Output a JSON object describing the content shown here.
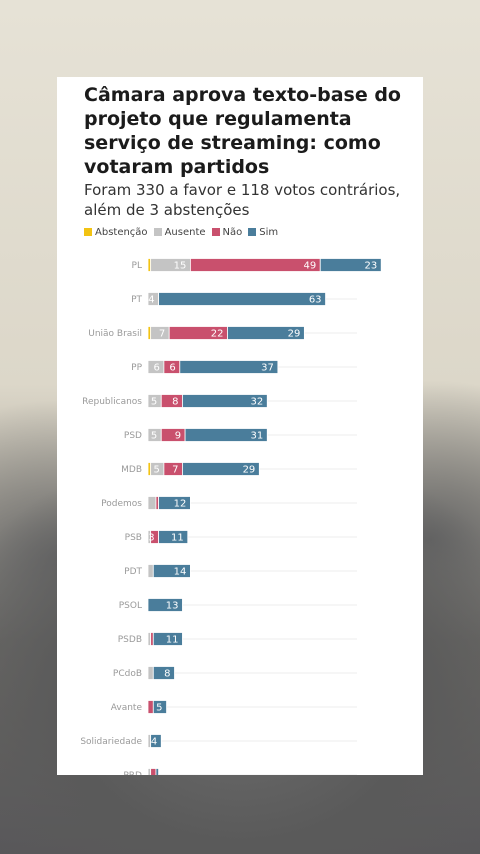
{
  "colors": {
    "abstencao": "#f2c313",
    "ausente": "#c4c4c4",
    "nao": "#c9506d",
    "sim": "#4a7d9b"
  },
  "header": {
    "title": "Câmara aprova texto-base do projeto que regulamenta serviço de streaming: como votaram partidos",
    "subtitle": "Foram 330 a favor e 118 votos contrários, além de 3 abstenções"
  },
  "legend": [
    {
      "label": "Abstenção",
      "color": "#f2c313"
    },
    {
      "label": "Ausente",
      "color": "#c4c4c4"
    },
    {
      "label": "Não",
      "color": "#c9506d"
    },
    {
      "label": "Sim",
      "color": "#4a7d9b"
    }
  ],
  "chart_data": {
    "type": "bar",
    "orientation": "horizontal",
    "stacked": true,
    "title": "Câmara aprova texto-base do projeto que regulamenta serviço de streaming: como votaram partidos",
    "subtitle": "Foram 330 a favor e 118 votos contrários, além de 3 abstenções",
    "categories": [
      "PL",
      "PT",
      "União Brasil",
      "PP",
      "Republicanos",
      "PSD",
      "MDB",
      "Podemos",
      "PSB",
      "PDT",
      "PSOL",
      "PSDB",
      "PCdoB",
      "Avante",
      "Solidariedade",
      "PRD"
    ],
    "series": [
      {
        "name": "Abstenção",
        "color": "#f2c313",
        "values": [
          1,
          0,
          1,
          0,
          0,
          0,
          1,
          0,
          0,
          0,
          0,
          0,
          0,
          0,
          0,
          0
        ]
      },
      {
        "name": "Ausente",
        "color": "#c4c4c4",
        "values": [
          15,
          4,
          7,
          6,
          5,
          5,
          5,
          3,
          1,
          2,
          0,
          1,
          2,
          0,
          1,
          1
        ]
      },
      {
        "name": "Não",
        "color": "#c9506d",
        "values": [
          49,
          0,
          22,
          6,
          8,
          9,
          7,
          1,
          3,
          0,
          0,
          1,
          0,
          2,
          0,
          2
        ]
      },
      {
        "name": "Sim",
        "color": "#4a7d9b",
        "values": [
          23,
          63,
          29,
          37,
          32,
          31,
          29,
          12,
          11,
          14,
          13,
          11,
          8,
          5,
          4,
          1
        ]
      }
    ],
    "labels": {
      "Ausente": [
        "15",
        "4",
        "7",
        "6",
        "5",
        "5",
        "5",
        "",
        "",
        "",
        "",
        "",
        "",
        "",
        "",
        ""
      ],
      "Não": [
        "49",
        "",
        "22",
        "6",
        "8",
        "9",
        "7",
        "",
        "3",
        "",
        "",
        "",
        "",
        "",
        "",
        ""
      ],
      "Sim": [
        "23",
        "63",
        "29",
        "37",
        "32",
        "31",
        "29",
        "12",
        "11",
        "14",
        "13",
        "11",
        "8",
        "5",
        "4",
        ""
      ]
    }
  }
}
